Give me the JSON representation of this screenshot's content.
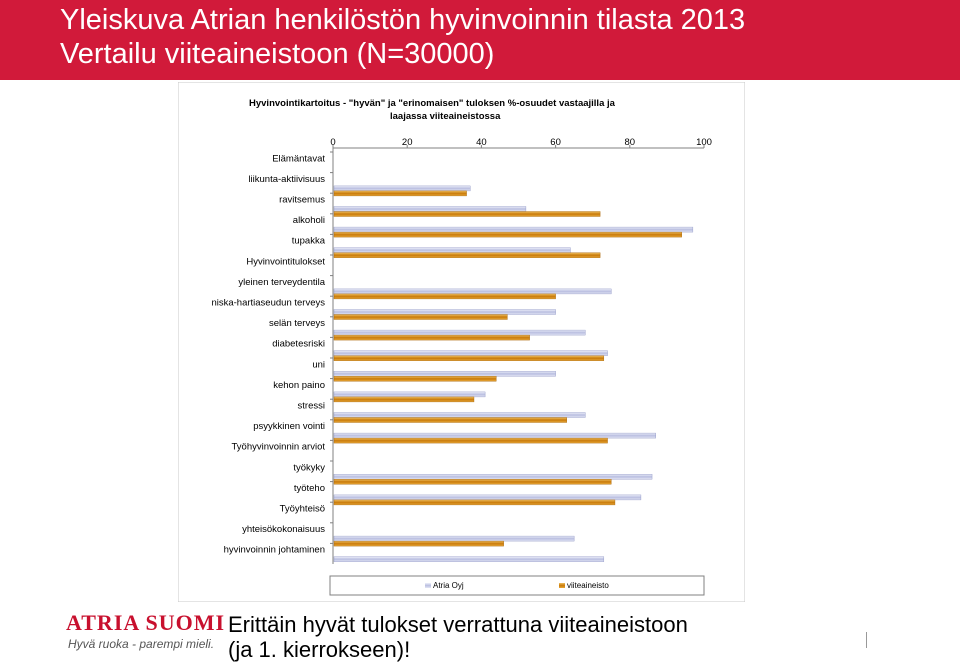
{
  "header": {
    "title_line1": "Yleiskuva Atrian henkilöstön hyvinvoinnin tilasta 2013",
    "title_line2": "Vertailu viiteaineistoon (N=30000)"
  },
  "colors": {
    "header_bg": "#d11a3a",
    "series_atria": "#c7cbe6",
    "series_reference": "#d9890f"
  },
  "chart_data": {
    "type": "bar",
    "orientation": "horizontal",
    "title": "Hyvinvointikartoitus - \"hyvän\" ja \"erinomaisen\" tuloksen %-osuudet vastaajilla ja laajassa viiteaineistossa",
    "title_lines": [
      "Hyvinvointikartoitus - \"hyvän\" ja \"erinomaisen\" tuloksen %-osuudet vastaajilla ja",
      "laajassa viiteaineistossa"
    ],
    "xlim": [
      0,
      100
    ],
    "ticks": [
      "0",
      "20",
      "40",
      "60",
      "80",
      "100"
    ],
    "legend_position": "bottom",
    "gridlines": false,
    "categories": [
      "Elämäntavat",
      "liikunta-aktiivisuus",
      "ravitsemus",
      "alkoholi",
      "tupakka",
      "Hyvinvointitulokset",
      "yleinen terveydentila",
      "niska-hartiaseudun terveys",
      "selän terveys",
      "diabetesriski",
      "uni",
      "kehon paino",
      "stressi",
      "psyykkinen vointi",
      "Työhyvinvoinnin arviot",
      "työkyky",
      "työteho",
      "Työyhteisö",
      "yhteisökokonaisuus",
      "hyvinvoinnin johtaminen"
    ],
    "series": [
      {
        "name": "Atria Oyj",
        "values": [
          null,
          37,
          52,
          97,
          64,
          null,
          75,
          60,
          68,
          74,
          60,
          41,
          68,
          87,
          null,
          86,
          83,
          null,
          65,
          73
        ]
      },
      {
        "name": "viiteaineisto",
        "values": [
          null,
          36,
          72,
          94,
          72,
          null,
          60,
          47,
          53,
          73,
          44,
          38,
          63,
          74,
          null,
          75,
          76,
          null,
          46,
          null
        ]
      }
    ]
  },
  "logo": {
    "brand": "ATRIA SUOMI",
    "tagline": "Hyvä ruoka - parempi mieli."
  },
  "caption": {
    "line1": "Erittäin hyvät tulokset verrattuna viiteaineistoon",
    "line2": "(ja 1. kierrokseen)!"
  }
}
